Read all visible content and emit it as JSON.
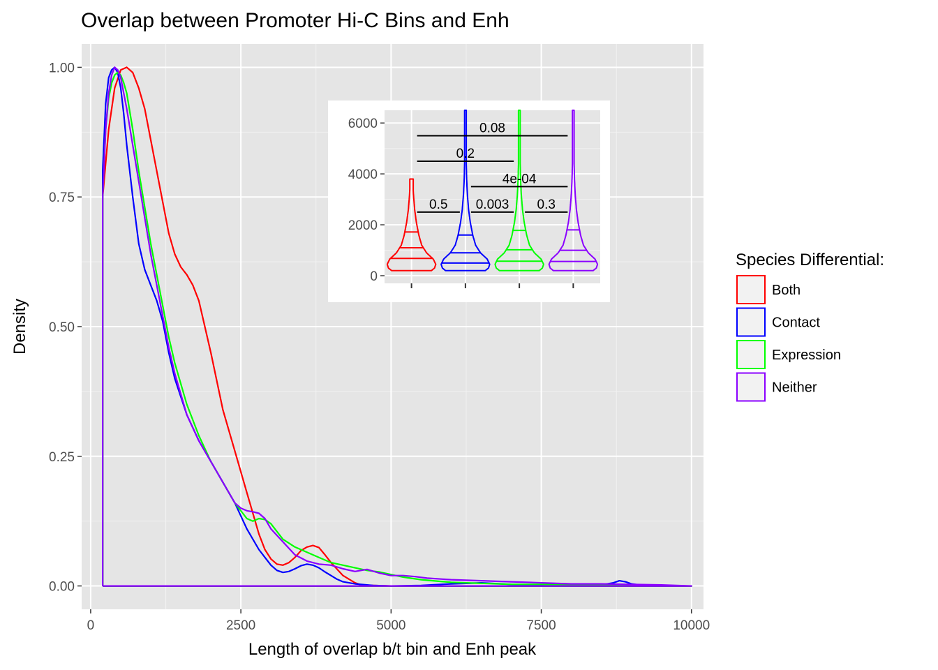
{
  "chart_data": [
    {
      "type": "line",
      "title": "Overlap between Promoter Hi-C Bins and Enh",
      "xlabel": "Length of overlap b/t bin and Enh peak",
      "ylabel": "Density",
      "xlim": [
        -150,
        10200
      ],
      "ylim": [
        -0.045,
        1.045
      ],
      "x_ticks": [
        0,
        2500,
        5000,
        7500,
        10000
      ],
      "x_tick_labels": [
        "0",
        "2500",
        "5000",
        "7500",
        "10000"
      ],
      "y_ticks": [
        0,
        0.25,
        0.5,
        0.75,
        1.0
      ],
      "y_tick_labels": [
        "0.00",
        "0.25",
        "0.50",
        "0.75",
        "1.00"
      ],
      "grid": true,
      "background": "#e5e5e5",
      "legend": {
        "title": "Species Differential:",
        "placement": "right",
        "entries": [
          "Both",
          "Contact",
          "Expression",
          "Neither"
        ]
      },
      "series": [
        {
          "name": "Both",
          "color": "#ff0000",
          "x": [
            200,
            200,
            300,
            400,
            500,
            600,
            700,
            800,
            900,
            1000,
            1100,
            1200,
            1300,
            1400,
            1500,
            1600,
            1700,
            1800,
            2000,
            2200,
            2400,
            2600,
            2800,
            2900,
            3000,
            3100,
            3200,
            3300,
            3400,
            3500,
            3600,
            3700,
            3800,
            3900,
            4000,
            4200,
            4400,
            4500,
            4700,
            5000,
            6000,
            7000,
            8000,
            9000,
            10000,
            10000,
            200
          ],
          "y": [
            0,
            0.75,
            0.88,
            0.96,
            0.995,
            1.0,
            0.99,
            0.96,
            0.92,
            0.86,
            0.8,
            0.74,
            0.68,
            0.64,
            0.615,
            0.6,
            0.58,
            0.55,
            0.45,
            0.34,
            0.26,
            0.18,
            0.1,
            0.07,
            0.052,
            0.042,
            0.04,
            0.045,
            0.055,
            0.068,
            0.075,
            0.078,
            0.074,
            0.06,
            0.045,
            0.02,
            0.006,
            0.002,
            0.001,
            0,
            0,
            0,
            0,
            0,
            0,
            0,
            0
          ]
        },
        {
          "name": "Contact",
          "color": "#0000ff",
          "x": [
            200,
            200,
            250,
            300,
            350,
            400,
            450,
            500,
            550,
            600,
            700,
            800,
            900,
            1000,
            1100,
            1200,
            1300,
            1400,
            1600,
            1800,
            2000,
            2200,
            2400,
            2600,
            2800,
            3000,
            3100,
            3200,
            3300,
            3400,
            3500,
            3600,
            3700,
            3800,
            3900,
            4000,
            4100,
            4200,
            4400,
            4700,
            5000,
            5500,
            6000,
            6500,
            7000,
            7500,
            8000,
            8500,
            8700,
            8800,
            8900,
            9000,
            9200,
            9500,
            10000,
            10000,
            200
          ],
          "y": [
            0,
            0.8,
            0.93,
            0.98,
            0.995,
            1.0,
            0.99,
            0.96,
            0.91,
            0.85,
            0.75,
            0.66,
            0.61,
            0.58,
            0.55,
            0.51,
            0.45,
            0.4,
            0.33,
            0.28,
            0.24,
            0.2,
            0.16,
            0.11,
            0.07,
            0.04,
            0.03,
            0.026,
            0.028,
            0.033,
            0.039,
            0.042,
            0.04,
            0.035,
            0.027,
            0.02,
            0.013,
            0.008,
            0.004,
            0.001,
            0.0,
            0.001,
            0.004,
            0.006,
            0.003,
            0.002,
            0.001,
            0.002,
            0.006,
            0.01,
            0.008,
            0.004,
            0.001,
            0.0,
            0.0,
            0,
            0
          ]
        },
        {
          "name": "Expression",
          "color": "#00ff00",
          "x": [
            200,
            200,
            250,
            300,
            350,
            400,
            450,
            500,
            550,
            600,
            700,
            800,
            900,
            1000,
            1100,
            1200,
            1300,
            1400,
            1600,
            1800,
            2000,
            2200,
            2400,
            2600,
            2700,
            2800,
            2900,
            3000,
            3200,
            3400,
            3600,
            3800,
            4000,
            4200,
            4400,
            4600,
            4800,
            5000,
            5200,
            5500,
            6000,
            6500,
            7000,
            7500,
            8000,
            8500,
            8800,
            9000,
            9500,
            10000,
            10000,
            200
          ],
          "y": [
            0,
            0.75,
            0.88,
            0.94,
            0.97,
            0.985,
            0.99,
            0.985,
            0.97,
            0.95,
            0.88,
            0.8,
            0.73,
            0.66,
            0.6,
            0.54,
            0.48,
            0.43,
            0.35,
            0.29,
            0.24,
            0.2,
            0.16,
            0.13,
            0.125,
            0.13,
            0.128,
            0.12,
            0.09,
            0.075,
            0.065,
            0.055,
            0.045,
            0.04,
            0.035,
            0.03,
            0.027,
            0.022,
            0.017,
            0.012,
            0.007,
            0.005,
            0.003,
            0.003,
            0.002,
            0.002,
            0.002,
            0.001,
            0.0,
            0.0,
            0,
            0
          ]
        },
        {
          "name": "Neither",
          "color": "#8b00ff",
          "x": [
            200,
            200,
            250,
            300,
            350,
            400,
            450,
            500,
            550,
            600,
            700,
            800,
            900,
            1000,
            1100,
            1200,
            1300,
            1400,
            1600,
            1800,
            2000,
            2200,
            2400,
            2500,
            2600,
            2700,
            2800,
            2900,
            3000,
            3200,
            3400,
            3600,
            3800,
            4000,
            4200,
            4400,
            4600,
            4800,
            5000,
            5200,
            5400,
            5600,
            6000,
            6500,
            7000,
            7500,
            8000,
            8500,
            9000,
            9500,
            10000,
            10000,
            200
          ],
          "y": [
            0,
            0.75,
            0.88,
            0.95,
            0.985,
            1.0,
            0.995,
            0.98,
            0.95,
            0.92,
            0.85,
            0.78,
            0.71,
            0.64,
            0.58,
            0.52,
            0.46,
            0.41,
            0.33,
            0.28,
            0.24,
            0.2,
            0.16,
            0.15,
            0.145,
            0.143,
            0.14,
            0.13,
            0.11,
            0.085,
            0.06,
            0.048,
            0.042,
            0.04,
            0.033,
            0.028,
            0.032,
            0.025,
            0.02,
            0.02,
            0.018,
            0.015,
            0.012,
            0.01,
            0.008,
            0.006,
            0.004,
            0.004,
            0.003,
            0.002,
            0.0,
            0,
            0
          ]
        }
      ]
    },
    {
      "type": "violin",
      "ylim": [
        -300,
        6500
      ],
      "y_ticks": [
        0,
        2000,
        4000,
        6000
      ],
      "y_tick_labels": [
        "0",
        "2000",
        "4000",
        "6000"
      ],
      "grid": true,
      "background": "#e5e5e5",
      "quantile_lines": [
        0.25,
        0.5,
        0.75
      ],
      "groups": [
        {
          "name": "Both",
          "color": "#ff0000",
          "max": 3800,
          "quantiles": [
            680,
            1100,
            1720
          ]
        },
        {
          "name": "Contact",
          "color": "#0000ff",
          "max": 6500,
          "quantiles": [
            500,
            900,
            1600
          ]
        },
        {
          "name": "Expression",
          "color": "#00ff00",
          "max": 6500,
          "quantiles": [
            570,
            1020,
            1780
          ]
        },
        {
          "name": "Neither",
          "color": "#8b00ff",
          "max": 6500,
          "quantiles": [
            560,
            1000,
            1800
          ]
        }
      ],
      "comparisons": [
        {
          "from": "Both",
          "to": "Contact",
          "y": 2500,
          "label": "0.5"
        },
        {
          "from": "Contact",
          "to": "Expression",
          "y": 2500,
          "label": "0.003"
        },
        {
          "from": "Expression",
          "to": "Neither",
          "y": 2500,
          "label": "0.3"
        },
        {
          "from": "Contact",
          "to": "Neither",
          "y": 3500,
          "label": "4e-04"
        },
        {
          "from": "Both",
          "to": "Expression",
          "y": 4500,
          "label": "0.2"
        },
        {
          "from": "Both",
          "to": "Neither",
          "y": 5500,
          "label": "0.08"
        }
      ]
    }
  ]
}
